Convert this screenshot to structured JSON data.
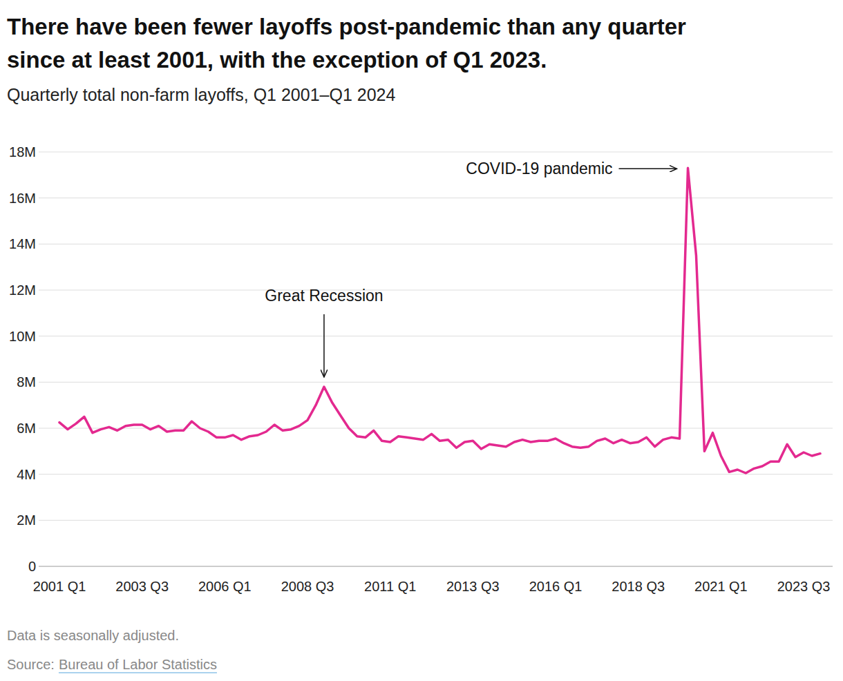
{
  "chart_data": {
    "type": "line",
    "title": "There have been fewer layoffs post-pandemic than any quarter since at least 2001, with the exception of Q1 2023.",
    "title_lines": [
      "There have been fewer layoffs post-pandemic than any quarter",
      "since at least 2001, with the exception of Q1 2023."
    ],
    "subtitle": "Quarterly total non-farm layoffs, Q1 2001–Q1 2024",
    "note": "Data is seasonally adjusted.",
    "source": {
      "label": "Source:",
      "text": "Bureau of Labor Statistics"
    },
    "color": "#e3298f",
    "grid": true,
    "categories": [
      "2001 Q1",
      null,
      null,
      null,
      null,
      null,
      null,
      null,
      null,
      null,
      "2003 Q3",
      null,
      null,
      null,
      null,
      null,
      null,
      null,
      null,
      null,
      "2006 Q1",
      null,
      null,
      null,
      null,
      null,
      null,
      null,
      null,
      null,
      "2008 Q3",
      null,
      null,
      null,
      null,
      null,
      null,
      null,
      null,
      null,
      "2011 Q1",
      null,
      null,
      null,
      null,
      null,
      null,
      null,
      null,
      null,
      "2013 Q3",
      null,
      null,
      null,
      null,
      null,
      null,
      null,
      null,
      null,
      "2016 Q1",
      null,
      null,
      null,
      null,
      null,
      null,
      null,
      null,
      null,
      "2018 Q3",
      null,
      null,
      null,
      null,
      null,
      null,
      null,
      null,
      null,
      "2021 Q1",
      null,
      null,
      null,
      null,
      null,
      null,
      null,
      null,
      null,
      "2023 Q3",
      null,
      null
    ],
    "values": [
      6.25,
      5.95,
      6.2,
      6.5,
      5.8,
      5.95,
      6.05,
      5.9,
      6.1,
      6.15,
      6.15,
      5.95,
      6.1,
      5.85,
      5.9,
      5.9,
      6.3,
      6.0,
      5.85,
      5.6,
      5.6,
      5.7,
      5.5,
      5.65,
      5.7,
      5.85,
      6.15,
      5.9,
      5.95,
      6.1,
      6.35,
      7.0,
      7.8,
      7.1,
      6.55,
      6.0,
      5.65,
      5.6,
      5.9,
      5.45,
      5.4,
      5.65,
      5.6,
      5.55,
      5.5,
      5.75,
      5.45,
      5.5,
      5.15,
      5.4,
      5.45,
      5.1,
      5.3,
      5.25,
      5.2,
      5.4,
      5.5,
      5.4,
      5.45,
      5.45,
      5.55,
      5.35,
      5.2,
      5.15,
      5.2,
      5.45,
      5.55,
      5.35,
      5.5,
      5.35,
      5.4,
      5.6,
      5.2,
      5.5,
      5.6,
      5.55,
      17.3,
      13.5,
      5.0,
      5.8,
      4.8,
      4.1,
      4.2,
      4.05,
      4.25,
      4.35,
      4.55,
      4.55,
      5.3,
      4.75,
      4.95,
      4.8,
      4.9
    ],
    "ylim": [
      0,
      18
    ],
    "yticks": [
      0,
      {
        "value": 2,
        "label": "2M"
      },
      {
        "value": 4,
        "label": "4M"
      },
      {
        "value": 6,
        "label": "6M"
      },
      {
        "value": 8,
        "label": "8M"
      },
      {
        "value": 10,
        "label": "10M"
      },
      {
        "value": 12,
        "label": "12M"
      },
      {
        "value": 14,
        "label": "14M"
      },
      {
        "value": 16,
        "label": "16M"
      },
      {
        "value": 18,
        "label": "18M"
      }
    ],
    "annotations": [
      {
        "text": "Great Recession",
        "point": 32
      },
      {
        "text": "COVID-19 pandemic",
        "point": 76
      }
    ]
  }
}
